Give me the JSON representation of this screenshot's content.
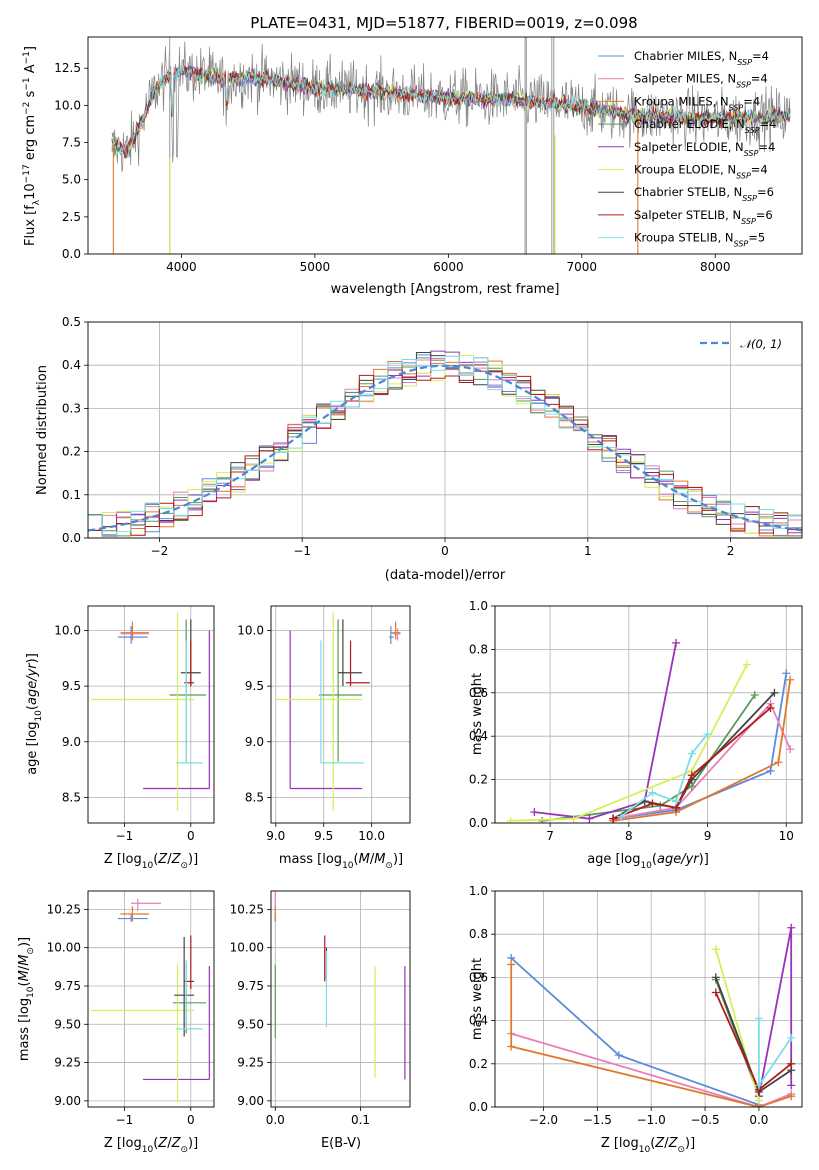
{
  "title": "PLATE=0431, MJD=51877, FIBERID=0019, z=0.098",
  "colors": {
    "Chabrier MILES": "#5b8bd9",
    "Salpeter MILES": "#e87fb8",
    "Kroupa MILES": "#e0792e",
    "Chabrier ELODIE": "#5a9a5a",
    "Salpeter ELODIE": "#9932b8",
    "Kroupa ELODIE": "#d6ef5a",
    "Chabrier STELIB": "#444444",
    "Salpeter STELIB": "#b01c1c",
    "Kroupa STELIB": "#7fdde8",
    "data": "#808080",
    "gaussian": "#4a86d8",
    "grid": "#b0b0b0"
  },
  "chart_data": [
    {
      "id": "spectrum",
      "type": "line",
      "xlabel": "wavelength [Angstrom, rest frame]",
      "ylabel": "Flux [f_λ10^-17 erg cm^-2 s^-1 A^-1]",
      "xlim": [
        3300,
        8650
      ],
      "ylim": [
        0,
        14.6
      ],
      "xticks": [
        4000,
        5000,
        6000,
        7000,
        8000
      ],
      "yticks": [
        0.0,
        2.5,
        5.0,
        7.5,
        10.0,
        12.5
      ],
      "ytick_labels": [
        "0.0",
        "2.5",
        "5.0",
        "7.5",
        "10.0",
        "12.5"
      ],
      "legend_position": "top-right",
      "legend": [
        "Chabrier MILES, N_SSP=4",
        "Salpeter MILES, N_SSP=4",
        "Kroupa MILES, N_SSP=4",
        "Chabrier ELODIE, N_SSP=4",
        "Salpeter ELODIE, N_SSP=4",
        "Kroupa ELODIE, N_SSP=4",
        "Chabrier STELIB, N_SSP=6",
        "Salpeter STELIB, N_SSP=6",
        "Kroupa STELIB, N_SSP=5"
      ],
      "continuum_x": [
        3500,
        3600,
        3700,
        3800,
        3900,
        4000,
        4100,
        4200,
        4300,
        4400,
        4500,
        4700,
        5000,
        5500,
        6000,
        6500,
        7000,
        7400,
        7500,
        8000,
        8500
      ],
      "continuum_y": [
        7.2,
        7.0,
        8.8,
        11.0,
        12.0,
        12.3,
        12.1,
        12.0,
        11.7,
        11.8,
        11.9,
        11.7,
        11.2,
        10.9,
        10.5,
        10.4,
        9.9,
        9.3,
        9.3,
        9.1,
        9.3
      ]
    },
    {
      "id": "residuals",
      "type": "histogram",
      "xlabel": "(data-model)/error",
      "ylabel": "Normed distribution",
      "xlim": [
        -2.5,
        2.5
      ],
      "ylim": [
        0,
        0.5
      ],
      "xticks": [
        -2,
        -1,
        0,
        1,
        2
      ],
      "yticks": [
        0.0,
        0.1,
        0.2,
        0.3,
        0.4,
        0.5
      ],
      "ytick_labels": [
        "0.0",
        "0.1",
        "0.2",
        "0.3",
        "0.4",
        "0.5"
      ],
      "legend": [
        "𝒩(0, 1)"
      ],
      "legend_position": "top-right",
      "bin_width": 0.1
    },
    {
      "id": "age_vs_Z",
      "type": "errorbar",
      "xlabel": "Z [log10(Z/Z⊙)]",
      "ylabel": "age [log10(age/yr)]",
      "xlim": [
        -1.55,
        0.35
      ],
      "ylim": [
        8.27,
        10.22
      ],
      "xticks": [
        -1,
        0
      ],
      "yticks": [
        8.5,
        9.0,
        9.5,
        10.0
      ],
      "ytick_labels": [
        "8.5",
        "9.0",
        "9.5",
        "10.0"
      ],
      "points": [
        {
          "s": "Chabrier MILES",
          "x": -0.9,
          "y": 9.94,
          "xe": [
            0.2,
            0.25
          ],
          "ye": [
            0.06,
            0.1
          ]
        },
        {
          "s": "Salpeter MILES",
          "x": -0.88,
          "y": 9.97,
          "xe": [
            0.18,
            0.25
          ],
          "ye": [
            0.06,
            0.05
          ]
        },
        {
          "s": "Kroupa MILES",
          "x": -0.88,
          "y": 9.98,
          "xe": [
            0.18,
            0.25
          ],
          "ye": [
            0.06,
            0.1
          ]
        },
        {
          "s": "Chabrier ELODIE",
          "x": -0.07,
          "y": 9.42,
          "xe": [
            0.25,
            0.3
          ],
          "ye": [
            0.6,
            0.68
          ]
        },
        {
          "s": "Salpeter ELODIE",
          "x": 0.28,
          "y": 8.58,
          "xe": [
            1.0,
            0.0
          ],
          "ye": [
            0.0,
            1.42
          ]
        },
        {
          "s": "Kroupa ELODIE",
          "x": -0.2,
          "y": 9.38,
          "xe": [
            1.3,
            0.25
          ],
          "ye": [
            1.0,
            0.78
          ]
        },
        {
          "s": "Chabrier STELIB",
          "x": 0.0,
          "y": 9.62,
          "xe": [
            0.15,
            0.15
          ],
          "ye": [
            0.12,
            0.48
          ]
        },
        {
          "s": "Salpeter STELIB",
          "x": 0.0,
          "y": 9.53,
          "xe": [
            0.1,
            0.05
          ],
          "ye": [
            0.03,
            0.38
          ]
        },
        {
          "s": "Kroupa STELIB",
          "x": -0.07,
          "y": 8.81,
          "xe": [
            0.15,
            0.25
          ],
          "ye": [
            0.0,
            1.1
          ]
        }
      ]
    },
    {
      "id": "age_vs_mass",
      "type": "errorbar",
      "xlabel": "mass [log10(M/M⊙)]",
      "ylabel": "",
      "xlim": [
        8.95,
        10.4
      ],
      "ylim": [
        8.27,
        10.22
      ],
      "xticks": [
        9.0,
        9.5,
        10.0
      ],
      "xtick_labels": [
        "9.0",
        "9.5",
        "10.0"
      ],
      "yticks": [
        8.5,
        9.0,
        9.5,
        10.0
      ],
      "ytick_labels": [
        "8.5",
        "9.0",
        "9.5",
        "10.0"
      ],
      "points": [
        {
          "s": "Chabrier MILES",
          "x": 10.2,
          "y": 9.94,
          "xe": [
            0.02,
            0.03
          ],
          "ye": [
            0.06,
            0.1
          ]
        },
        {
          "s": "Salpeter MILES",
          "x": 10.27,
          "y": 9.97,
          "xe": [
            0.05,
            0.03
          ],
          "ye": [
            0.06,
            0.05
          ]
        },
        {
          "s": "Kroupa MILES",
          "x": 10.25,
          "y": 9.98,
          "xe": [
            0.05,
            0.05
          ],
          "ye": [
            0.06,
            0.1
          ]
        },
        {
          "s": "Chabrier ELODIE",
          "x": 9.65,
          "y": 9.42,
          "xe": [
            0.2,
            0.25
          ],
          "ye": [
            0.6,
            0.68
          ]
        },
        {
          "s": "Salpeter ELODIE",
          "x": 9.15,
          "y": 8.58,
          "xe": [
            0.0,
            0.75
          ],
          "ye": [
            0.0,
            1.42
          ]
        },
        {
          "s": "Kroupa ELODIE",
          "x": 9.6,
          "y": 9.38,
          "xe": [
            0.6,
            0.3
          ],
          "ye": [
            1.0,
            0.78
          ]
        },
        {
          "s": "Chabrier STELIB",
          "x": 9.7,
          "y": 9.62,
          "xe": [
            0.05,
            0.2
          ],
          "ye": [
            0.12,
            0.48
          ]
        },
        {
          "s": "Salpeter STELIB",
          "x": 9.78,
          "y": 9.53,
          "xe": [
            0.05,
            0.2
          ],
          "ye": [
            0.03,
            0.38
          ]
        },
        {
          "s": "Kroupa STELIB",
          "x": 9.47,
          "y": 8.81,
          "xe": [
            0.0,
            0.45
          ],
          "ye": [
            0.0,
            1.1
          ]
        }
      ]
    },
    {
      "id": "weight_vs_age",
      "type": "line",
      "xlabel": "age [log10(age/yr)]",
      "ylabel": "mass weight",
      "xlim": [
        6.3,
        10.2
      ],
      "ylim": [
        0,
        1.0
      ],
      "xticks": [
        7,
        8,
        9,
        10
      ],
      "yticks": [
        0.0,
        0.2,
        0.4,
        0.6,
        0.8,
        1.0
      ],
      "ytick_labels": [
        "0.0",
        "0.2",
        "0.4",
        "0.6",
        "0.8",
        "1.0"
      ],
      "series": [
        {
          "s": "Chabrier MILES",
          "x": [
            7.8,
            8.6,
            9.8,
            10.0
          ],
          "y": [
            0.02,
            0.06,
            0.24,
            0.69
          ]
        },
        {
          "s": "Salpeter MILES",
          "x": [
            7.8,
            8.6,
            9.8,
            10.05
          ],
          "y": [
            0.02,
            0.07,
            0.55,
            0.34
          ]
        },
        {
          "s": "Kroupa MILES",
          "x": [
            7.8,
            8.6,
            9.9,
            10.05
          ],
          "y": [
            0.01,
            0.05,
            0.28,
            0.66
          ]
        },
        {
          "s": "Chabrier ELODIE",
          "x": [
            6.9,
            8.4,
            8.8,
            9.6
          ],
          "y": [
            0.01,
            0.08,
            0.17,
            0.59
          ]
        },
        {
          "s": "Salpeter ELODIE",
          "x": [
            6.8,
            7.5,
            8.2,
            8.6
          ],
          "y": [
            0.05,
            0.02,
            0.1,
            0.83
          ]
        },
        {
          "s": "Kroupa ELODIE",
          "x": [
            6.5,
            7.3,
            8.8,
            9.5
          ],
          "y": [
            0.01,
            0.02,
            0.24,
            0.73
          ]
        },
        {
          "s": "Chabrier STELIB",
          "x": [
            7.8,
            8.2,
            8.6,
            8.8,
            9.85
          ],
          "y": [
            0.02,
            0.1,
            0.07,
            0.2,
            0.6
          ]
        },
        {
          "s": "Salpeter STELIB",
          "x": [
            7.8,
            8.3,
            8.6,
            8.8,
            9.8
          ],
          "y": [
            0.02,
            0.09,
            0.07,
            0.22,
            0.53
          ]
        },
        {
          "s": "Kroupa STELIB",
          "x": [
            7.9,
            8.3,
            8.6,
            8.8,
            9.0
          ],
          "y": [
            0.03,
            0.14,
            0.1,
            0.32,
            0.41
          ]
        }
      ]
    },
    {
      "id": "mass_vs_Z",
      "type": "errorbar",
      "xlabel": "Z [log10(Z/Z⊙)]",
      "ylabel": "mass [log10(M/M⊙)]",
      "xlim": [
        -1.55,
        0.35
      ],
      "ylim": [
        8.96,
        10.37
      ],
      "xticks": [
        -1,
        0
      ],
      "yticks": [
        9.0,
        9.25,
        9.5,
        9.75,
        10.0,
        10.25
      ],
      "ytick_labels": [
        "9.00",
        "9.25",
        "9.50",
        "9.75",
        "10.00",
        "10.25"
      ],
      "points": [
        {
          "s": "Chabrier MILES",
          "x": -0.9,
          "y": 10.19,
          "xe": [
            0.2,
            0.25
          ],
          "ye": [
            0.02,
            0.03
          ]
        },
        {
          "s": "Salpeter MILES",
          "x": -0.8,
          "y": 10.29,
          "xe": [
            0.1,
            0.35
          ],
          "ye": [
            0.05,
            0.03
          ]
        },
        {
          "s": "Kroupa MILES",
          "x": -0.88,
          "y": 10.22,
          "xe": [
            0.18,
            0.25
          ],
          "ye": [
            0.05,
            0.05
          ]
        },
        {
          "s": "Chabrier ELODIE",
          "x": -0.07,
          "y": 9.64,
          "xe": [
            0.2,
            0.3
          ],
          "ye": [
            0.2,
            0.25
          ]
        },
        {
          "s": "Salpeter ELODIE",
          "x": 0.28,
          "y": 9.14,
          "xe": [
            1.0,
            0.0
          ],
          "ye": [
            0.0,
            0.74
          ]
        },
        {
          "s": "Kroupa ELODIE",
          "x": -0.2,
          "y": 9.59,
          "xe": [
            1.3,
            0.25
          ],
          "ye": [
            0.6,
            0.3
          ]
        },
        {
          "s": "Chabrier STELIB",
          "x": -0.1,
          "y": 9.69,
          "xe": [
            0.15,
            0.15
          ],
          "ye": [
            0.27,
            0.38
          ]
        },
        {
          "s": "Salpeter STELIB",
          "x": 0.0,
          "y": 9.78,
          "xe": [
            0.1,
            0.05
          ],
          "ye": [
            0.05,
            0.3
          ]
        },
        {
          "s": "Kroupa STELIB",
          "x": -0.07,
          "y": 9.47,
          "xe": [
            0.15,
            0.25
          ],
          "ye": [
            0.0,
            0.45
          ]
        }
      ]
    },
    {
      "id": "mass_vs_EBV",
      "type": "errorbar",
      "xlabel": "E(B-V)",
      "ylabel": "",
      "xlim": [
        -0.005,
        0.158
      ],
      "ylim": [
        8.96,
        10.37
      ],
      "xticks": [
        0.0,
        0.1
      ],
      "xtick_labels": [
        "0.0",
        "0.1"
      ],
      "yticks": [
        9.0,
        9.25,
        9.5,
        9.75,
        10.0,
        10.25
      ],
      "ytick_labels": [
        "9.00",
        "9.25",
        "9.50",
        "9.75",
        "10.00",
        "10.25"
      ],
      "points": [
        {
          "s": "Chabrier MILES",
          "x": 0.0,
          "y": 10.19,
          "xe": [
            0,
            0
          ],
          "ye": [
            0.02,
            0.03
          ]
        },
        {
          "s": "Salpeter MILES",
          "x": 0.0,
          "y": 10.29,
          "xe": [
            0,
            0
          ],
          "ye": [
            0.05,
            0.08
          ]
        },
        {
          "s": "Kroupa MILES",
          "x": 0.0,
          "y": 10.22,
          "xe": [
            0,
            0
          ],
          "ye": [
            0.05,
            0.05
          ]
        },
        {
          "s": "Chabrier ELODIE",
          "x": 0.0,
          "y": 9.64,
          "xe": [
            0,
            0
          ],
          "ye": [
            0.23,
            0.25
          ]
        },
        {
          "s": "Salpeter ELODIE",
          "x": 0.152,
          "y": 9.5,
          "xe": [
            0,
            0
          ],
          "ye": [
            0.36,
            0.38
          ]
        },
        {
          "s": "Kroupa ELODIE",
          "x": 0.117,
          "y": 9.5,
          "xe": [
            0,
            0
          ],
          "ye": [
            0.35,
            0.38
          ]
        },
        {
          "s": "Chabrier STELIB",
          "x": 0.06,
          "y": 9.9,
          "xe": [
            0,
            0
          ],
          "ye": [
            0.1,
            0.1
          ]
        },
        {
          "s": "Salpeter STELIB",
          "x": 0.058,
          "y": 9.94,
          "xe": [
            0,
            0
          ],
          "ye": [
            0.16,
            0.14
          ]
        },
        {
          "s": "Kroupa STELIB",
          "x": 0.06,
          "y": 9.7,
          "xe": [
            0,
            0
          ],
          "ye": [
            0.22,
            0.28
          ]
        }
      ]
    },
    {
      "id": "weight_vs_Z",
      "type": "line",
      "xlabel": "Z [log10(Z/Z⊙)]",
      "ylabel": "mass weight",
      "xlim": [
        -2.45,
        0.4
      ],
      "ylim": [
        0,
        1.0
      ],
      "xticks": [
        -2.0,
        -1.5,
        -1.0,
        -0.5,
        0.0
      ],
      "xtick_labels": [
        "−2.0",
        "−1.5",
        "−1.0",
        "−0.5",
        "0.0"
      ],
      "yticks": [
        0.0,
        0.2,
        0.4,
        0.6,
        0.8,
        1.0
      ],
      "ytick_labels": [
        "0.0",
        "0.2",
        "0.4",
        "0.6",
        "0.8",
        "1.0"
      ],
      "series": [
        {
          "s": "Chabrier MILES",
          "x": [
            -2.3,
            -1.3,
            0.0
          ],
          "y": [
            0.69,
            0.24,
            0.01
          ]
        },
        {
          "s": "Salpeter MILES",
          "x": [
            -2.3,
            0.0,
            0.3
          ],
          "y": [
            0.34,
            0.0,
            0.06
          ]
        },
        {
          "s": "Kroupa MILES",
          "x": [
            -2.3,
            -2.3,
            0.0,
            0.3
          ],
          "y": [
            0.66,
            0.28,
            0.0,
            0.05
          ]
        },
        {
          "s": "Chabrier ELODIE",
          "x": [
            -0.4,
            0.0
          ],
          "y": [
            0.59,
            0.05
          ]
        },
        {
          "s": "Salpeter ELODIE",
          "x": [
            0.0,
            0.3,
            0.3
          ],
          "y": [
            0.05,
            0.83,
            0.1
          ]
        },
        {
          "s": "Kroupa ELODIE",
          "x": [
            -0.4,
            0.0
          ],
          "y": [
            0.73,
            0.03
          ]
        },
        {
          "s": "Chabrier STELIB",
          "x": [
            -0.4,
            0.0,
            0.3
          ],
          "y": [
            0.6,
            0.07,
            0.17
          ]
        },
        {
          "s": "Salpeter STELIB",
          "x": [
            -0.4,
            0.0,
            0.3
          ],
          "y": [
            0.53,
            0.08,
            0.2
          ]
        },
        {
          "s": "Kroupa STELIB",
          "x": [
            0.0,
            0.0,
            0.3
          ],
          "y": [
            0.41,
            0.1,
            0.32
          ]
        }
      ]
    }
  ]
}
